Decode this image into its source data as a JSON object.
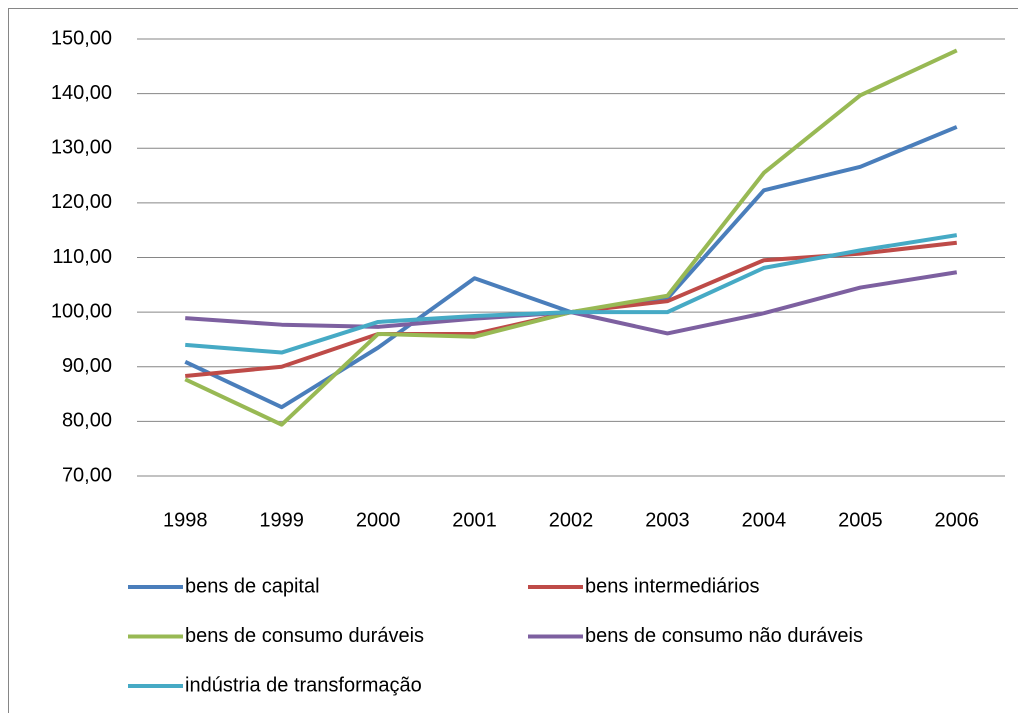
{
  "chart_data": {
    "type": "line",
    "categories": [
      "1998",
      "1999",
      "2000",
      "2001",
      "2002",
      "2003",
      "2004",
      "2005",
      "2006"
    ],
    "series": [
      {
        "name": "bens de capital",
        "color": "#4a7ebb",
        "values": [
          90.9,
          82.6,
          93.5,
          106.2,
          100,
          102.5,
          122.3,
          126.6,
          133.9
        ]
      },
      {
        "name": "bens intermediários",
        "color": "#be4b48",
        "values": [
          88.3,
          90,
          96,
          96,
          100,
          102,
          109.5,
          110.7,
          112.7
        ]
      },
      {
        "name": "bens de consumo duráveis",
        "color": "#98b954",
        "values": [
          87.7,
          79.4,
          96,
          95.5,
          100,
          103,
          125.5,
          139.7,
          147.9
        ]
      },
      {
        "name": "bens de consumo não duráveis",
        "color": "#7d60a0",
        "values": [
          98.9,
          97.7,
          97.3,
          98.8,
          100,
          96.1,
          99.8,
          104.5,
          107.3
        ]
      },
      {
        "name": "indústria de transformação",
        "color": "#46aac5",
        "values": [
          94,
          92.6,
          98.2,
          99.3,
          100,
          100,
          108.1,
          111.3,
          114.1
        ]
      }
    ],
    "ylim": [
      70,
      150
    ],
    "yticks": [
      {
        "value": 70,
        "label": "70,00"
      },
      {
        "value": 80,
        "label": "80,00"
      },
      {
        "value": 90,
        "label": "90,00"
      },
      {
        "value": 100,
        "label": "100,00"
      },
      {
        "value": 110,
        "label": "110,00"
      },
      {
        "value": 120,
        "label": "120,00"
      },
      {
        "value": 130,
        "label": "130,00"
      },
      {
        "value": 140,
        "label": "140,00"
      },
      {
        "value": 150,
        "label": "150,00"
      }
    ],
    "grid": true,
    "legend": "bottom"
  }
}
